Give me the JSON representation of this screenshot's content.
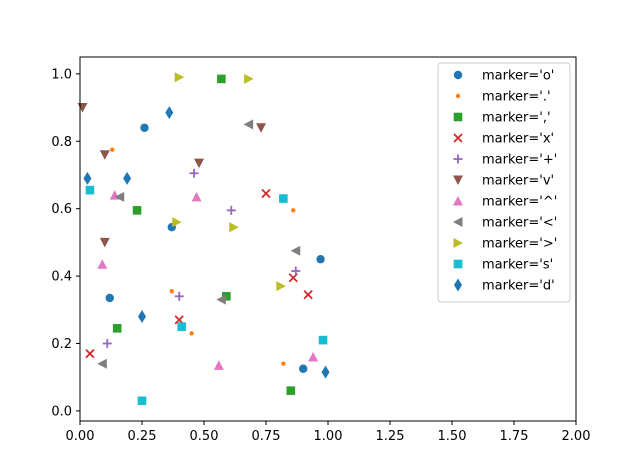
{
  "chart_data": {
    "type": "scatter",
    "xlim": [
      0,
      2.0
    ],
    "ylim": [
      -0.03,
      1.05
    ],
    "xticks": [
      "0.00",
      "0.25",
      "0.50",
      "0.75",
      "1.00",
      "1.25",
      "1.50",
      "1.75",
      "2.00"
    ],
    "yticks": [
      "0.0",
      "0.2",
      "0.4",
      "0.6",
      "0.8",
      "1.0"
    ],
    "grid": false,
    "legend_position": "upper-right",
    "series": [
      {
        "name": "marker='o'",
        "marker": "o",
        "color": "#1f77b4",
        "x": [
          0.26,
          0.37,
          0.12,
          0.97,
          0.9
        ],
        "y": [
          0.84,
          0.545,
          0.335,
          0.45,
          0.125
        ]
      },
      {
        "name": "marker='.'",
        "marker": ".",
        "color": "#ff7f0e",
        "x": [
          0.13,
          0.37,
          0.45,
          0.86,
          0.82
        ],
        "y": [
          0.775,
          0.355,
          0.23,
          0.595,
          0.14
        ]
      },
      {
        "name": "marker=','",
        "marker": ",",
        "color": "#2ca02c",
        "x": [
          0.57,
          0.23,
          0.59,
          0.15,
          0.85
        ],
        "y": [
          0.985,
          0.595,
          0.34,
          0.245,
          0.06
        ]
      },
      {
        "name": "marker='x'",
        "marker": "x",
        "color": "#d62728",
        "x": [
          0.75,
          0.86,
          0.92,
          0.4,
          0.04
        ],
        "y": [
          0.645,
          0.395,
          0.345,
          0.27,
          0.17
        ]
      },
      {
        "name": "marker='+'",
        "marker": "+",
        "color": "#9467bd",
        "x": [
          0.46,
          0.61,
          0.87,
          0.4,
          0.11
        ],
        "y": [
          0.705,
          0.595,
          0.415,
          0.34,
          0.2
        ]
      },
      {
        "name": "marker='v'",
        "marker": "v",
        "color": "#8c564b",
        "x": [
          0.01,
          0.1,
          0.73,
          0.48,
          0.1
        ],
        "y": [
          0.9,
          0.76,
          0.84,
          0.735,
          0.5
        ]
      },
      {
        "name": "marker='^'",
        "marker": "^",
        "color": "#e377c2",
        "x": [
          0.14,
          0.47,
          0.09,
          0.56,
          0.94
        ],
        "y": [
          0.64,
          0.635,
          0.435,
          0.135,
          0.16
        ]
      },
      {
        "name": "marker='<'",
        "marker": "<",
        "color": "#7f7f7f",
        "x": [
          0.68,
          0.16,
          0.87,
          0.57,
          0.09
        ],
        "y": [
          0.85,
          0.635,
          0.475,
          0.33,
          0.14
        ]
      },
      {
        "name": "marker='>'",
        "marker": ">",
        "color": "#bcbd22",
        "x": [
          0.4,
          0.68,
          0.39,
          0.62,
          0.81
        ],
        "y": [
          0.99,
          0.985,
          0.56,
          0.545,
          0.37
        ]
      },
      {
        "name": "marker='s'",
        "marker": "s",
        "color": "#17becf",
        "x": [
          0.04,
          0.82,
          0.41,
          0.98,
          0.25
        ],
        "y": [
          0.655,
          0.63,
          0.25,
          0.21,
          0.03
        ]
      },
      {
        "name": "marker='d'",
        "marker": "d",
        "color": "#1f77b4",
        "x": [
          0.36,
          0.03,
          0.19,
          0.25,
          0.99
        ],
        "y": [
          0.885,
          0.69,
          0.69,
          0.28,
          0.115
        ]
      }
    ]
  }
}
